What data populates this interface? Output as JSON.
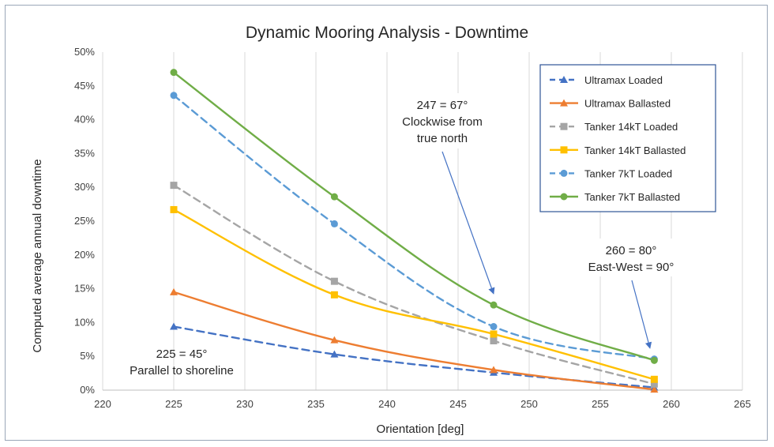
{
  "chart_data": {
    "type": "line",
    "title": "Dynamic Mooring Analysis - Downtime",
    "xlabel": "Orientation [deg]",
    "ylabel": "Computed average annual downtime",
    "xlim": [
      220,
      265
    ],
    "ylim": [
      0,
      50
    ],
    "x_ticks": [
      "220",
      "225",
      "230",
      "235",
      "240",
      "245",
      "250",
      "255",
      "260",
      "265"
    ],
    "y_ticks": [
      "0%",
      "5%",
      "10%",
      "15%",
      "20%",
      "25%",
      "30%",
      "35%",
      "40%",
      "45%",
      "50%"
    ],
    "grid": "vertical",
    "legend_position": "top-right",
    "x": [
      225,
      236.3,
      247.5,
      258.8
    ],
    "series": [
      {
        "name": "Ultramax Loaded",
        "values": [
          9.4,
          5.3,
          2.6,
          0.4
        ],
        "color": "#4472c4",
        "dash": true,
        "marker": "triangle"
      },
      {
        "name": "Ultramax Ballasted",
        "values": [
          14.5,
          7.4,
          3.0,
          0.1
        ],
        "color": "#ed7d31",
        "dash": false,
        "marker": "triangle"
      },
      {
        "name": "Tanker 14kT Loaded",
        "values": [
          30.3,
          16.1,
          7.3,
          0.9
        ],
        "color": "#a5a5a5",
        "dash": true,
        "marker": "square"
      },
      {
        "name": "Tanker 14kT Ballasted",
        "values": [
          26.7,
          14.1,
          8.3,
          1.6
        ],
        "color": "#ffc000",
        "dash": false,
        "marker": "square"
      },
      {
        "name": "Tanker 7kT Loaded",
        "values": [
          43.6,
          24.6,
          9.4,
          4.6
        ],
        "color": "#5b9bd5",
        "dash": true,
        "marker": "circle"
      },
      {
        "name": "Tanker 7kT Ballasted",
        "values": [
          47.0,
          28.6,
          12.6,
          4.4
        ],
        "color": "#70ad47",
        "dash": false,
        "marker": "circle"
      }
    ],
    "annotations": [
      {
        "lines": [
          "247 = 67°",
          "Clockwise from",
          "true north"
        ]
      },
      {
        "lines": [
          "260 = 80°",
          "East-West = 90°"
        ]
      },
      {
        "lines": [
          "225 = 45°",
          "Parallel to shoreline"
        ]
      }
    ]
  }
}
